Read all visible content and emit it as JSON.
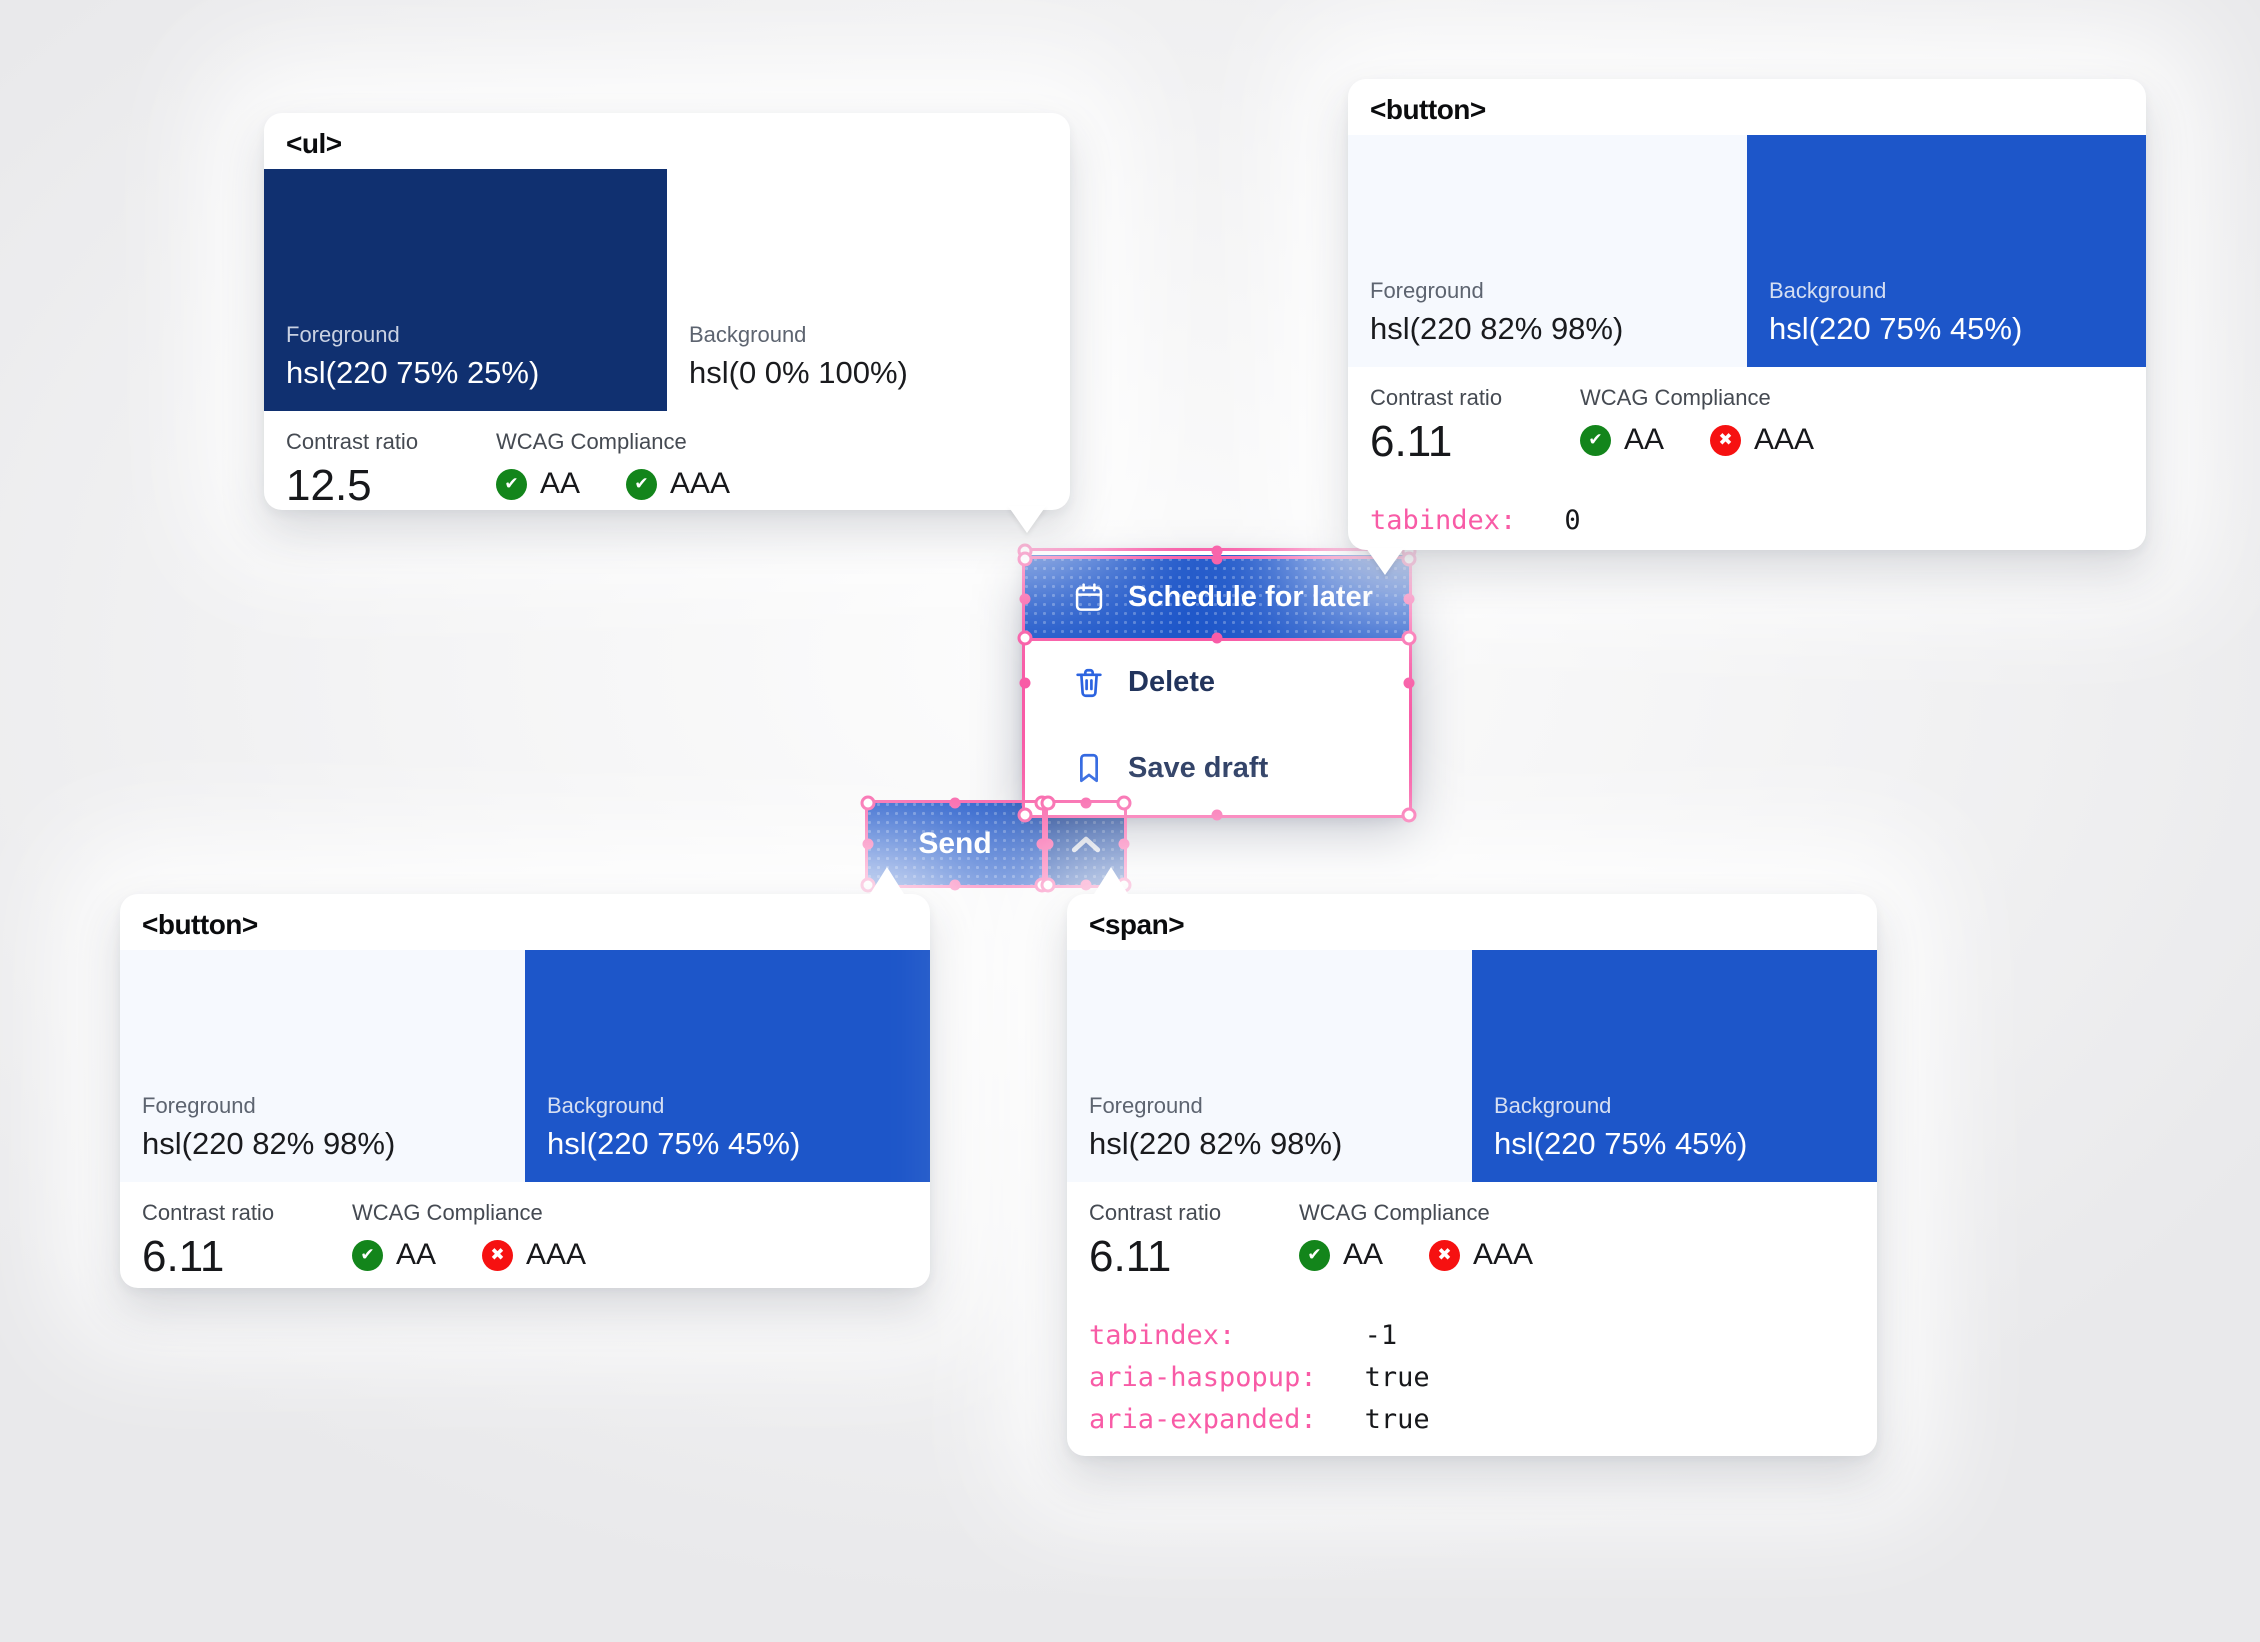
{
  "colors": {
    "accent_blue": "hsl(220 75% 45%)",
    "dark_blue": "hsl(220 75% 25%)",
    "light_blue": "hsl(220 82% 98%)",
    "pressed_blue": "hsl(220 72% 40%)",
    "menu_text": "#22345c",
    "icon_blue": "#2b63e0",
    "pink": "#f85ba6",
    "green": "#13851b",
    "red": "#f61111"
  },
  "cards": {
    "ul": {
      "tag": "<ul>",
      "fg_label": "Foreground",
      "fg_value": "hsl(220 75% 25%)",
      "bg_label": "Background",
      "bg_value": "hsl(0 0% 100%)",
      "contrast_label": "Contrast ratio",
      "contrast_value": "12.5",
      "wcag_label": "WCAG Compliance",
      "aa_label": "AA",
      "aa_pass": true,
      "aaa_label": "AAA",
      "aaa_pass": true,
      "attrs": []
    },
    "button_top": {
      "tag": "<button>",
      "fg_label": "Foreground",
      "fg_value": "hsl(220 82% 98%)",
      "bg_label": "Background",
      "bg_value": "hsl(220 75% 45%)",
      "contrast_label": "Contrast ratio",
      "contrast_value": "6.11",
      "wcag_label": "WCAG Compliance",
      "aa_label": "AA",
      "aa_pass": true,
      "aaa_label": "AAA",
      "aaa_pass": false,
      "attrs": [
        {
          "name": "tabindex:",
          "value": "0"
        }
      ]
    },
    "button_bottom": {
      "tag": "<button>",
      "fg_label": "Foreground",
      "fg_value": "hsl(220 82% 98%)",
      "bg_label": "Background",
      "bg_value": "hsl(220 75% 45%)",
      "contrast_label": "Contrast ratio",
      "contrast_value": "6.11",
      "wcag_label": "WCAG Compliance",
      "aa_label": "AA",
      "aa_pass": true,
      "aaa_label": "AAA",
      "aaa_pass": false,
      "attrs": []
    },
    "span": {
      "tag": "<span>",
      "fg_label": "Foreground",
      "fg_value": "hsl(220 82% 98%)",
      "bg_label": "Background",
      "bg_value": "hsl(220 75% 45%)",
      "contrast_label": "Contrast ratio",
      "contrast_value": "6.11",
      "wcag_label": "WCAG Compliance",
      "aa_label": "AA",
      "aa_pass": true,
      "aaa_label": "AAA",
      "aaa_pass": false,
      "attrs": [
        {
          "name": "tabindex:",
          "value": "-1"
        },
        {
          "name": "aria-haspopup:",
          "value": "true"
        },
        {
          "name": "aria-expanded:",
          "value": "true"
        }
      ]
    }
  },
  "menu": {
    "items": [
      {
        "icon": "calendar-icon",
        "label": "Schedule for later",
        "selected": true
      },
      {
        "icon": "trash-icon",
        "label": "Delete",
        "selected": false
      },
      {
        "icon": "bookmark-icon",
        "label": "Save draft",
        "selected": false
      }
    ]
  },
  "split_button": {
    "send_label": "Send",
    "toggle_icon": "chevron-up-icon"
  }
}
